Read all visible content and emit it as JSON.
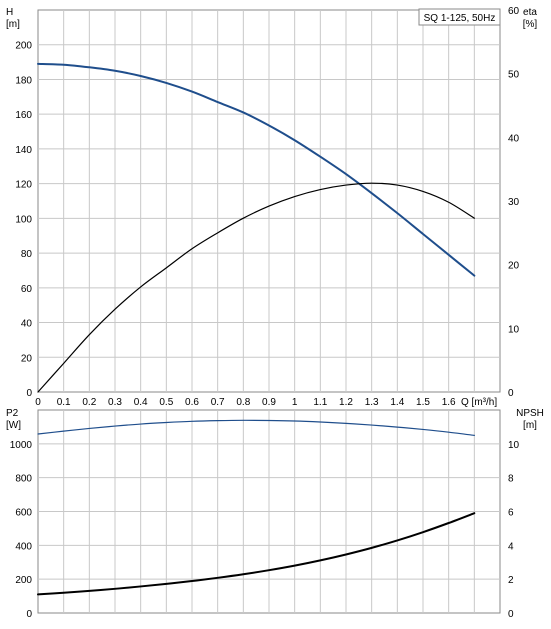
{
  "chart_data": [
    {
      "type": "line",
      "title": "SQ 1-125, 50Hz",
      "xlabel": "Q [m³/h]",
      "xlim": [
        0,
        1.8
      ],
      "x_ticks": [
        0,
        0.1,
        0.2,
        0.3,
        0.4,
        0.5,
        0.6,
        0.7,
        0.8,
        0.9,
        1.0,
        1.1,
        1.2,
        1.3,
        1.4,
        1.5,
        1.6
      ],
      "x_tick_labels": [
        "0",
        "0.1",
        "0.2",
        "0.3",
        "0.4",
        "0.5",
        "0.6",
        "0.7",
        "0.8",
        "0.9",
        "1",
        "1.1",
        "1.2",
        "1.3",
        "1.4",
        "1.5",
        "1.6"
      ],
      "y_left": {
        "label_lines": [
          "H",
          "[m]"
        ],
        "lim": [
          0,
          220
        ],
        "ticks": [
          0,
          20,
          40,
          60,
          80,
          100,
          120,
          140,
          160,
          180,
          200
        ]
      },
      "y_right": {
        "label_lines": [
          "eta",
          "[%]"
        ],
        "lim": [
          0,
          60
        ],
        "ticks": [
          0,
          10,
          20,
          30,
          40,
          50,
          60
        ]
      },
      "grid": true,
      "series": [
        {
          "axis": "left",
          "color": "#1f4e8c",
          "x": [
            0,
            0.1,
            0.2,
            0.3,
            0.4,
            0.5,
            0.6,
            0.7,
            0.8,
            0.9,
            1.0,
            1.1,
            1.2,
            1.3,
            1.4,
            1.5,
            1.6,
            1.7
          ],
          "values": [
            189,
            188.5,
            187,
            185,
            182,
            178,
            173,
            167,
            161,
            153.5,
            145,
            135.5,
            125.5,
            114.5,
            103,
            91,
            79,
            67
          ]
        },
        {
          "axis": "right",
          "color": "#000000",
          "x": [
            0,
            0.1,
            0.2,
            0.3,
            0.4,
            0.5,
            0.6,
            0.7,
            0.8,
            0.9,
            1.0,
            1.1,
            1.2,
            1.3,
            1.4,
            1.5,
            1.6,
            1.7
          ],
          "values": [
            0,
            4.5,
            9,
            13,
            16.5,
            19.5,
            22.5,
            25,
            27.3,
            29.2,
            30.7,
            31.8,
            32.5,
            32.8,
            32.5,
            31.5,
            29.8,
            27.3
          ]
        }
      ]
    },
    {
      "type": "line",
      "xlim": [
        0,
        1.8
      ],
      "x_ticks": [
        0,
        0.1,
        0.2,
        0.3,
        0.4,
        0.5,
        0.6,
        0.7,
        0.8,
        0.9,
        1.0,
        1.1,
        1.2,
        1.3,
        1.4,
        1.5,
        1.6
      ],
      "y_left": {
        "label_lines": [
          "P2",
          "[W]"
        ],
        "lim": [
          0,
          1200
        ],
        "ticks": [
          0,
          200,
          400,
          600,
          800,
          1000
        ]
      },
      "y_right": {
        "label_lines": [
          "NPSH",
          "[m]"
        ],
        "lim": [
          0,
          12
        ],
        "ticks": [
          0,
          2,
          4,
          6,
          8,
          10
        ]
      },
      "grid": true,
      "series": [
        {
          "axis": "left",
          "color": "#1f4e8c",
          "x": [
            0,
            0.1,
            0.2,
            0.3,
            0.4,
            0.5,
            0.6,
            0.7,
            0.8,
            0.9,
            1.0,
            1.1,
            1.2,
            1.3,
            1.4,
            1.5,
            1.6,
            1.7
          ],
          "values": [
            1058,
            1075,
            1091,
            1105,
            1117,
            1126,
            1133,
            1137,
            1139,
            1138,
            1135,
            1129,
            1121,
            1111,
            1099,
            1085,
            1069,
            1050
          ]
        },
        {
          "axis": "left",
          "color": "#000000",
          "x": [
            0,
            0.1,
            0.2,
            0.3,
            0.4,
            0.5,
            0.6,
            0.7,
            0.8,
            0.9,
            1.0,
            1.1,
            1.2,
            1.3,
            1.4,
            1.5,
            1.6,
            1.7
          ],
          "values": [
            110,
            120,
            131,
            143,
            157,
            172,
            189,
            208,
            229,
            253,
            280,
            311,
            346,
            385,
            429,
            478,
            532,
            590
          ]
        }
      ]
    }
  ]
}
